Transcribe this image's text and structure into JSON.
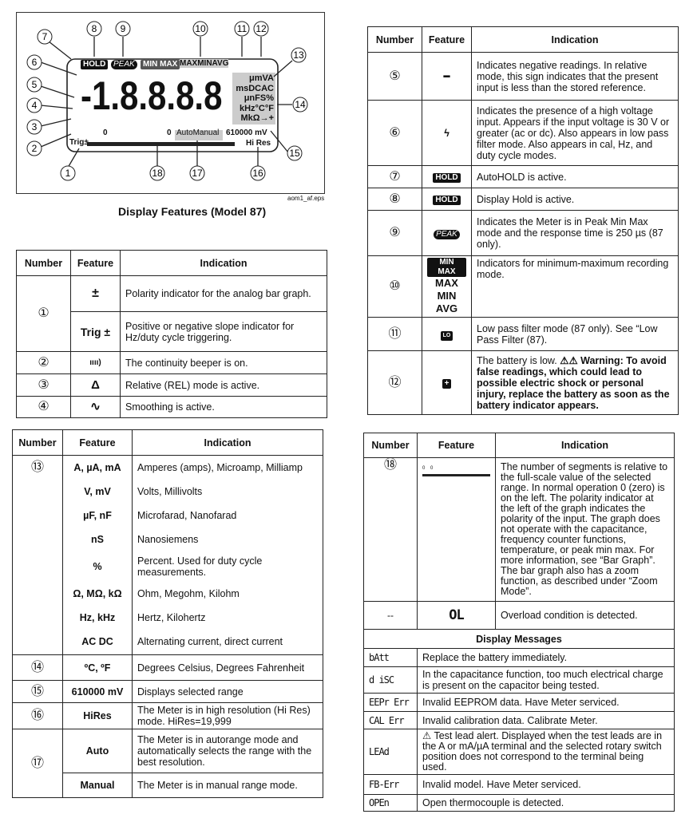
{
  "diagram": {
    "callouts": [
      "1",
      "2",
      "3",
      "4",
      "5",
      "6",
      "7",
      "8",
      "9",
      "10",
      "11",
      "12",
      "13",
      "14",
      "15",
      "16",
      "17",
      "18"
    ],
    "lcd": {
      "hold": "HOLD",
      "peak": "PEAK",
      "minmax": "MIN MAX",
      "maxminavg": "MAXMINAVG",
      "digits": "-1.8.8.8.8",
      "units": [
        "μmVA",
        "msDCAC",
        "μnFS%",
        "kHz°C°F",
        "MkΩ→+"
      ],
      "zero_left": "0",
      "zero_right": "0",
      "auto_manual": "AutoManual",
      "range": "610000 mV",
      "trig": "Trig±",
      "hires": "Hi Res"
    },
    "file_label": "aom1_af.eps",
    "caption": "Display Features (Model 87)"
  },
  "table_a": {
    "headers": [
      "Number",
      "Feature",
      "Indication"
    ],
    "rows": [
      {
        "num": "①",
        "feature": "±",
        "indication": "Polarity indicator for the analog bar graph."
      },
      {
        "feature": "Trig ±",
        "indication": "Positive or negative slope indicator for Hz/duty cycle triggering."
      },
      {
        "num": "②",
        "feature": "ıııı)",
        "indication": "The continuity beeper is on."
      },
      {
        "num": "③",
        "feature": "Δ",
        "indication": "Relative (REL) mode is active."
      },
      {
        "num": "④",
        "feature": "∿",
        "indication": "Smoothing is active."
      }
    ]
  },
  "table_b": {
    "headers": [
      "Number",
      "Feature",
      "Indication"
    ],
    "rows": [
      {
        "num": "⑬",
        "feature": "A, µA, mA",
        "indication": "Amperes (amps), Microamp, Milliamp"
      },
      {
        "feature": "V, mV",
        "indication": "Volts, Millivolts"
      },
      {
        "feature": "µF, nF",
        "indication": "Microfarad, Nanofarad"
      },
      {
        "feature": "nS",
        "indication": "Nanosiemens"
      },
      {
        "feature": "%",
        "indication": "Percent. Used for duty cycle measurements."
      },
      {
        "feature": "Ω, MΩ, kΩ",
        "indication": "Ohm, Megohm, Kilohm"
      },
      {
        "feature": "Hz, kHz",
        "indication": "Hertz, Kilohertz"
      },
      {
        "feature": "AC DC",
        "indication": "Alternating current, direct current"
      },
      {
        "num": "⑭",
        "feature": "ºC, ºF",
        "indication": "Degrees Celsius, Degrees Fahrenheit"
      },
      {
        "num": "⑮",
        "feature": "610000 mV",
        "indication": "Displays selected range"
      },
      {
        "num": "⑯",
        "feature": "HiRes",
        "indication": "The Meter is in high resolution (Hi Res) mode. HiRes=19,999"
      },
      {
        "num": "⑰",
        "feature": "Auto",
        "indication": "The Meter is in autorange mode and automatically selects the range with the best resolution."
      },
      {
        "feature": "Manual",
        "indication": "The Meter is in manual range mode."
      }
    ]
  },
  "table_c": {
    "headers": [
      "Number",
      "Feature",
      "Indication"
    ],
    "rows": [
      {
        "num": "⑤",
        "feature": "━",
        "indication": "Indicates negative readings. In relative mode, this sign indicates that the present input is less than the stored reference."
      },
      {
        "num": "⑥",
        "feature": "ϟ",
        "indication": "Indicates the presence of a high voltage input. Appears if the input voltage is 30 V or greater (ac or dc). Also appears in low pass filter mode. Also appears in cal, Hz, and duty cycle modes."
      },
      {
        "num": "⑦",
        "feature": "HOLD",
        "indication": "AutoHOLD is active."
      },
      {
        "num": "⑧",
        "feature": "HOLD",
        "indication": "Display Hold is active."
      },
      {
        "num": "⑨",
        "feature": "PEAK",
        "indication": "Indicates the Meter is in Peak Min Max mode and the response time is 250 µs (87 only)."
      },
      {
        "num": "⑩",
        "feature": [
          "MIN MAX",
          "MAX",
          "MIN",
          "AVG"
        ],
        "indication": "Indicators for minimum-maximum recording mode."
      },
      {
        "num": "⑪",
        "feature": "LO",
        "indication": "Low pass filter mode (87 only). See “Low Pass Filter (87)."
      },
      {
        "num": "⑫",
        "feature": "+",
        "indication": "The battery is low.",
        "warning": "⚠⚠ Warning: To avoid false readings, which could lead to possible electric shock or personal injury, replace the battery as soon as the battery indicator appears."
      }
    ]
  },
  "table_d": {
    "headers": [
      "Number",
      "Feature",
      "Indication"
    ],
    "rows": [
      {
        "num": "⑱",
        "feature": "0    0",
        "indication": "The number of segments is relative to the full-scale value of the selected range. In normal operation 0 (zero) is on the left. The polarity indicator at the left of the graph indicates the polarity of the input. The graph does not operate with the capacitance, frequency counter functions, temperature, or peak min max. For more information, see “Bar Graph”. The bar graph also has a zoom function, as described under “Zoom Mode”."
      },
      {
        "num": "--",
        "feature": "OL",
        "indication": "Overload condition is detected."
      }
    ],
    "messages_title": "Display Messages",
    "messages": [
      {
        "code": "bAtt",
        "text": "Replace the battery immediately."
      },
      {
        "code": "d iSC",
        "text": "In the capacitance function, too much electrical charge is present on the capacitor being tested."
      },
      {
        "code": "EEPr Err",
        "text": "Invalid EEPROM data. Have Meter serviced."
      },
      {
        "code": "CAL Err",
        "text": "Invalid calibration data. Calibrate Meter."
      },
      {
        "code": "LEAd",
        "text": "⚠ Test lead alert. Displayed when the test leads are in the A or mA/µA terminal and the selected rotary switch position does not correspond to the terminal being used."
      },
      {
        "code": "FB-Err",
        "text": "Invalid model. Have Meter serviced."
      },
      {
        "code": "OPEn",
        "text": "Open thermocouple is detected."
      }
    ]
  }
}
